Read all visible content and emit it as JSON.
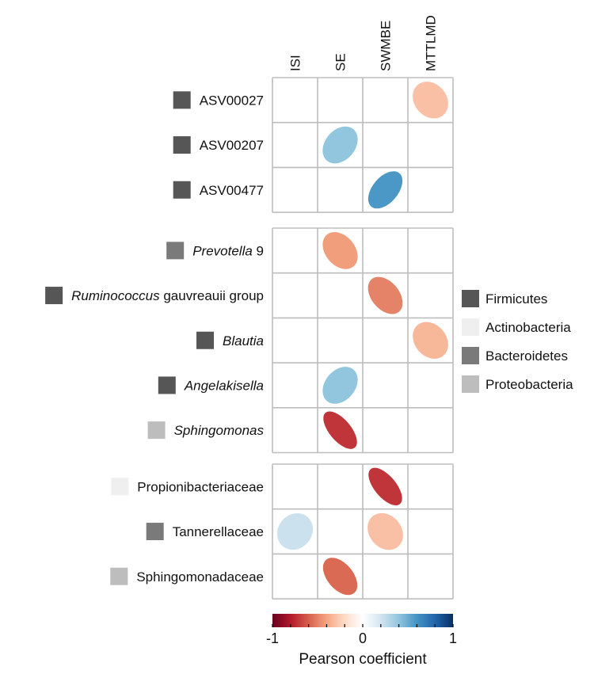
{
  "chart_data": {
    "type": "heatmap",
    "style": "correlation ellipses",
    "columns": [
      "ISI",
      "SE",
      "SWMBE",
      "MTTLMD"
    ],
    "groups": [
      {
        "rows": [
          {
            "label": [
              {
                "text": "ASV00027",
                "italic": false
              }
            ],
            "phylum": "Firmicutes",
            "values": [
              null,
              null,
              null,
              -0.3
            ]
          },
          {
            "label": [
              {
                "text": "ASV00207",
                "italic": false
              }
            ],
            "phylum": "Firmicutes",
            "values": [
              null,
              0.4,
              null,
              null
            ]
          },
          {
            "label": [
              {
                "text": "ASV00477",
                "italic": false
              }
            ],
            "phylum": "Firmicutes",
            "values": [
              null,
              null,
              0.58,
              null
            ]
          }
        ]
      },
      {
        "rows": [
          {
            "label": [
              {
                "text": "Prevotella",
                "italic": true
              },
              {
                "text": " 9",
                "italic": false
              }
            ],
            "phylum": "Bacteroidetes",
            "values": [
              null,
              -0.42,
              null,
              null
            ]
          },
          {
            "label": [
              {
                "text": "Ruminococcus",
                "italic": true
              },
              {
                "text": " gauvreauii group",
                "italic": false
              }
            ],
            "phylum": "Firmicutes",
            "values": [
              null,
              null,
              -0.5,
              null
            ]
          },
          {
            "label": [
              {
                "text": "Blautia",
                "italic": true
              }
            ],
            "phylum": "Firmicutes",
            "values": [
              null,
              null,
              null,
              -0.33
            ]
          },
          {
            "label": [
              {
                "text": "Angelakisella",
                "italic": true
              }
            ],
            "phylum": "Firmicutes",
            "values": [
              null,
              0.4,
              null,
              null
            ]
          },
          {
            "label": [
              {
                "text": "Sphingomonas",
                "italic": true
              }
            ],
            "phylum": "Proteobacteria",
            "values": [
              null,
              -0.72,
              null,
              null
            ]
          }
        ]
      },
      {
        "rows": [
          {
            "label": [
              {
                "text": "Propionibacteriaceae",
                "italic": false
              }
            ],
            "phylum": "Actinobacteria",
            "values": [
              null,
              null,
              -0.72,
              null
            ]
          },
          {
            "label": [
              {
                "text": "Tannerellaceae",
                "italic": false
              }
            ],
            "phylum": "Bacteroidetes",
            "values": [
              0.22,
              null,
              -0.3,
              null
            ]
          },
          {
            "label": [
              {
                "text": "Sphingomonadaceae",
                "italic": false
              }
            ],
            "phylum": "Proteobacteria",
            "values": [
              null,
              -0.57,
              null,
              null
            ]
          }
        ]
      }
    ],
    "legend": {
      "placement": "right",
      "items": [
        {
          "name": "Firmicutes",
          "color": "#565656"
        },
        {
          "name": "Actinobacteria",
          "color": "#efefef"
        },
        {
          "name": "Bacteroidetes",
          "color": "#7a7a7a"
        },
        {
          "name": "Proteobacteria",
          "color": "#bdbdbd"
        }
      ]
    },
    "colorbar": {
      "title": "Pearson coefficient",
      "range": [
        -1,
        1
      ],
      "tick_labels": [
        "-1",
        "0",
        "1"
      ],
      "colormap": "RdBu",
      "stops": [
        "#67001F",
        "#B2182B",
        "#D6604D",
        "#F4A582",
        "#FDDBC7",
        "#FFFFFF",
        "#D1E5F0",
        "#92C5DE",
        "#4393C3",
        "#2166AC",
        "#053061"
      ]
    }
  }
}
